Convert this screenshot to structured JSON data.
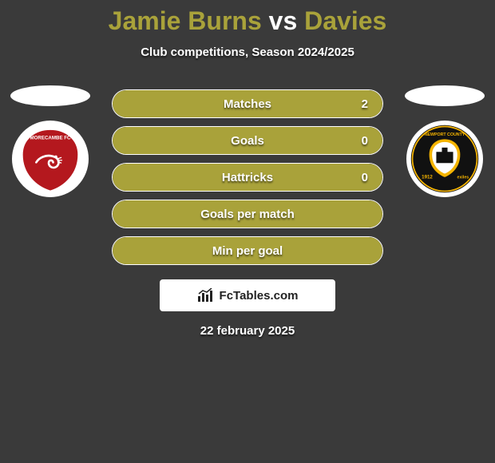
{
  "title": {
    "player1": "Jamie Burns",
    "vs": "vs",
    "player2": "Davies"
  },
  "subtitle": "Club competitions, Season 2024/2025",
  "colors": {
    "fill": "#a9a23a",
    "border": "#ffffff",
    "text": "#ffffff",
    "background": "#3a3a3a",
    "title_accent": "#a9a23a"
  },
  "stats": [
    {
      "label": "Matches",
      "value_right": "2",
      "fill_pct": 100,
      "show_value": true
    },
    {
      "label": "Goals",
      "value_right": "0",
      "fill_pct": 100,
      "show_value": true
    },
    {
      "label": "Hattricks",
      "value_right": "0",
      "fill_pct": 100,
      "show_value": true
    },
    {
      "label": "Goals per match",
      "value_right": "",
      "fill_pct": 100,
      "show_value": false
    },
    {
      "label": "Min per goal",
      "value_right": "",
      "fill_pct": 100,
      "show_value": false
    }
  ],
  "crest_left": {
    "bg": "#b4181e",
    "ring": "#ffffff",
    "name": "morecambe-crest"
  },
  "crest_right": {
    "bg": "#111111",
    "inner": "#f5b400",
    "ring": "#ffffff",
    "name": "newport-county-crest"
  },
  "watermark": {
    "icon": "chart-icon",
    "text": "FcTables.com"
  },
  "date": "22 february 2025"
}
